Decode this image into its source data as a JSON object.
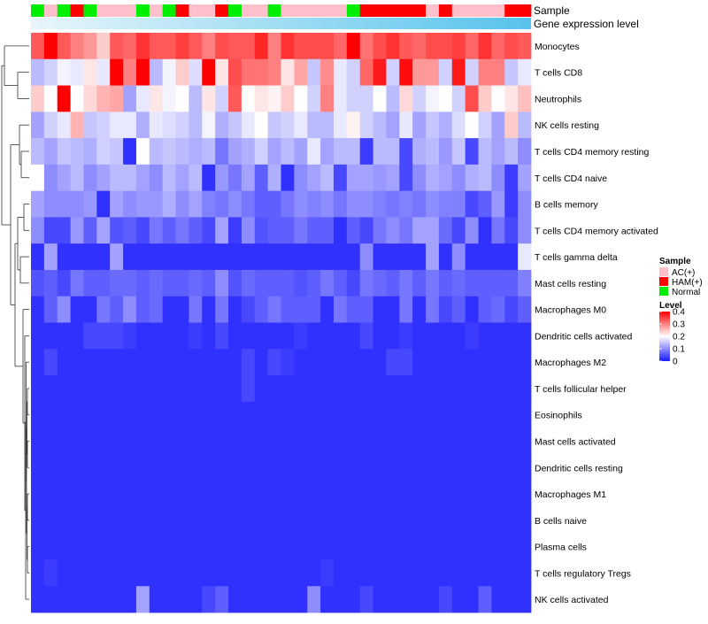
{
  "chart_data": {
    "type": "heatmap",
    "title": "",
    "annotation_titles": [
      "Sample",
      "Gene expression level"
    ],
    "rows": [
      "Monocytes",
      "T cells CD8",
      "Neutrophils",
      "NK cells resting",
      "T cells CD4 memory resting",
      "T cells CD4 naive",
      "B cells memory",
      "T cells CD4 memory activated",
      "T cells gamma delta",
      "Mast cells resting",
      "Macrophages M0",
      "Dendritic cells activated",
      "Macrophages M2",
      "T cells follicular helper",
      "Eosinophils",
      "Mast cells activated",
      "Dendritic cells resting",
      "Macrophages M1",
      "B cells naive",
      "Plasma cells",
      "T cells regulatory  Tregs",
      "NK cells activated"
    ],
    "sample_groups": [
      "N",
      "A",
      "N",
      "H",
      "N",
      "A",
      "A",
      "A",
      "N",
      "A",
      "N",
      "H",
      "A",
      "A",
      "H",
      "N",
      "A",
      "A",
      "N",
      "A",
      "A",
      "A",
      "A",
      "A",
      "N",
      "H",
      "H",
      "H",
      "H",
      "H",
      "A",
      "H",
      "A",
      "A",
      "A",
      "A",
      "H",
      "H"
    ],
    "sample_group_names": {
      "A": "AC(+)",
      "H": "HAM(+)",
      "N": "Normal"
    },
    "gene_expression_level_start": 0.3,
    "gene_expression_level_end": 1.0,
    "values": [
      [
        0.33,
        0.4,
        0.33,
        0.3,
        0.28,
        0.24,
        0.33,
        0.32,
        0.36,
        0.33,
        0.33,
        0.35,
        0.33,
        0.3,
        0.34,
        0.33,
        0.33,
        0.37,
        0.3,
        0.36,
        0.34,
        0.34,
        0.34,
        0.32,
        0.4,
        0.31,
        0.34,
        0.36,
        0.33,
        0.32,
        0.34,
        0.34,
        0.35,
        0.32,
        0.36,
        0.32,
        0.34,
        0.33
      ],
      [
        0.14,
        0.16,
        0.19,
        0.18,
        0.22,
        0.18,
        0.4,
        0.3,
        0.4,
        0.14,
        0.19,
        0.24,
        0.17,
        0.4,
        0.22,
        0.34,
        0.31,
        0.31,
        0.3,
        0.22,
        0.27,
        0.15,
        0.29,
        0.18,
        0.16,
        0.32,
        0.38,
        0.16,
        0.39,
        0.28,
        0.28,
        0.16,
        0.38,
        0.16,
        0.3,
        0.3,
        0.15,
        0.18
      ],
      [
        0.24,
        0.2,
        0.4,
        0.2,
        0.23,
        0.26,
        0.27,
        0.12,
        0.18,
        0.22,
        0.19,
        0.2,
        0.14,
        0.22,
        0.16,
        0.33,
        0.2,
        0.22,
        0.21,
        0.24,
        0.2,
        0.16,
        0.3,
        0.18,
        0.16,
        0.16,
        0.2,
        0.14,
        0.23,
        0.16,
        0.19,
        0.2,
        0.16,
        0.34,
        0.24,
        0.2,
        0.22,
        0.25
      ],
      [
        0.12,
        0.16,
        0.18,
        0.26,
        0.15,
        0.16,
        0.18,
        0.18,
        0.13,
        0.18,
        0.17,
        0.16,
        0.14,
        0.19,
        0.13,
        0.15,
        0.18,
        0.2,
        0.15,
        0.16,
        0.18,
        0.14,
        0.14,
        0.18,
        0.21,
        0.16,
        0.14,
        0.12,
        0.18,
        0.12,
        0.15,
        0.13,
        0.17,
        0.2,
        0.16,
        0.12,
        0.24,
        0.14
      ],
      [
        0.14,
        0.12,
        0.15,
        0.14,
        0.13,
        0.16,
        0.15,
        0.02,
        0.2,
        0.14,
        0.15,
        0.14,
        0.13,
        0.14,
        0.08,
        0.12,
        0.13,
        0.16,
        0.12,
        0.14,
        0.12,
        0.18,
        0.12,
        0.14,
        0.14,
        0.03,
        0.14,
        0.14,
        0.04,
        0.13,
        0.14,
        0.11,
        0.15,
        0.04,
        0.14,
        0.12,
        0.14,
        0.1
      ],
      [
        0.2,
        0.1,
        0.12,
        0.14,
        0.1,
        0.12,
        0.14,
        0.14,
        0.12,
        0.1,
        0.14,
        0.12,
        0.14,
        0.02,
        0.11,
        0.08,
        0.12,
        0.06,
        0.13,
        0.02,
        0.1,
        0.12,
        0.14,
        0.04,
        0.12,
        0.12,
        0.11,
        0.12,
        0.04,
        0.1,
        0.13,
        0.12,
        0.1,
        0.13,
        0.14,
        0.1,
        0.03,
        0.12
      ],
      [
        0.12,
        0.1,
        0.1,
        0.1,
        0.11,
        0.02,
        0.12,
        0.1,
        0.11,
        0.11,
        0.13,
        0.1,
        0.12,
        0.09,
        0.08,
        0.1,
        0.08,
        0.06,
        0.06,
        0.08,
        0.1,
        0.09,
        0.1,
        0.08,
        0.1,
        0.1,
        0.09,
        0.08,
        0.09,
        0.08,
        0.1,
        0.09,
        0.09,
        0.04,
        0.06,
        0.11,
        0.03,
        0.1
      ],
      [
        0.1,
        0.04,
        0.04,
        0.11,
        0.06,
        0.12,
        0.05,
        0.06,
        0.04,
        0.08,
        0.06,
        0.08,
        0.06,
        0.04,
        0.12,
        0.03,
        0.1,
        0.05,
        0.06,
        0.06,
        0.08,
        0.06,
        0.06,
        0.02,
        0.06,
        0.04,
        0.08,
        0.1,
        0.08,
        0.12,
        0.12,
        0.07,
        0.04,
        0.1,
        0.02,
        0.08,
        0.04,
        0.1
      ],
      [
        0.02,
        0.12,
        0.02,
        0.02,
        0.02,
        0.02,
        0.12,
        0.02,
        0.02,
        0.02,
        0.02,
        0.02,
        0.02,
        0.02,
        0.02,
        0.02,
        0.02,
        0.02,
        0.02,
        0.02,
        0.02,
        0.02,
        0.02,
        0.02,
        0.02,
        0.1,
        0.02,
        0.02,
        0.02,
        0.02,
        0.12,
        0.02,
        0.1,
        0.02,
        0.02,
        0.02,
        0.02,
        0.18
      ],
      [
        0.05,
        0.06,
        0.04,
        0.08,
        0.06,
        0.06,
        0.07,
        0.07,
        0.06,
        0.07,
        0.06,
        0.06,
        0.07,
        0.06,
        0.1,
        0.05,
        0.07,
        0.06,
        0.06,
        0.06,
        0.05,
        0.06,
        0.08,
        0.06,
        0.04,
        0.08,
        0.07,
        0.06,
        0.08,
        0.06,
        0.08,
        0.06,
        0.07,
        0.06,
        0.06,
        0.06,
        0.06,
        0.09
      ],
      [
        0.02,
        0.06,
        0.1,
        0.02,
        0.02,
        0.08,
        0.06,
        0.1,
        0.06,
        0.07,
        0.02,
        0.02,
        0.08,
        0.02,
        0.08,
        0.02,
        0.04,
        0.06,
        0.08,
        0.06,
        0.06,
        0.06,
        0.02,
        0.08,
        0.06,
        0.06,
        0.02,
        0.02,
        0.08,
        0.02,
        0.08,
        0.04,
        0.06,
        0.02,
        0.06,
        0.07,
        0.04,
        0.06
      ],
      [
        0.02,
        0.02,
        0.02,
        0.02,
        0.04,
        0.04,
        0.04,
        0.03,
        0.02,
        0.02,
        0.02,
        0.02,
        0.03,
        0.02,
        0.04,
        0.02,
        0.02,
        0.02,
        0.02,
        0.02,
        0.03,
        0.02,
        0.02,
        0.02,
        0.02,
        0.04,
        0.02,
        0.02,
        0.03,
        0.02,
        0.02,
        0.02,
        0.02,
        0.03,
        0.02,
        0.02,
        0.02,
        0.02
      ],
      [
        0.02,
        0.04,
        0.02,
        0.02,
        0.02,
        0.02,
        0.02,
        0.02,
        0.02,
        0.02,
        0.02,
        0.02,
        0.02,
        0.02,
        0.02,
        0.02,
        0.04,
        0.02,
        0.04,
        0.03,
        0.02,
        0.02,
        0.02,
        0.02,
        0.02,
        0.02,
        0.02,
        0.04,
        0.04,
        0.02,
        0.02,
        0.02,
        0.02,
        0.02,
        0.02,
        0.02,
        0.02,
        0.02
      ],
      [
        0.02,
        0.02,
        0.02,
        0.02,
        0.02,
        0.02,
        0.02,
        0.02,
        0.02,
        0.02,
        0.02,
        0.02,
        0.02,
        0.02,
        0.02,
        0.02,
        0.04,
        0.02,
        0.02,
        0.02,
        0.02,
        0.02,
        0.02,
        0.02,
        0.02,
        0.02,
        0.02,
        0.02,
        0.02,
        0.02,
        0.02,
        0.02,
        0.02,
        0.02,
        0.02,
        0.02,
        0.02,
        0.02
      ],
      [
        0.02,
        0.02,
        0.02,
        0.02,
        0.02,
        0.02,
        0.02,
        0.02,
        0.02,
        0.02,
        0.02,
        0.02,
        0.02,
        0.02,
        0.02,
        0.02,
        0.02,
        0.02,
        0.02,
        0.02,
        0.02,
        0.02,
        0.02,
        0.02,
        0.02,
        0.02,
        0.02,
        0.02,
        0.02,
        0.02,
        0.02,
        0.02,
        0.02,
        0.02,
        0.02,
        0.02,
        0.02,
        0.02
      ],
      [
        0.02,
        0.02,
        0.02,
        0.02,
        0.02,
        0.02,
        0.02,
        0.02,
        0.02,
        0.02,
        0.02,
        0.02,
        0.02,
        0.02,
        0.02,
        0.02,
        0.02,
        0.02,
        0.02,
        0.02,
        0.02,
        0.02,
        0.02,
        0.02,
        0.02,
        0.02,
        0.02,
        0.02,
        0.02,
        0.02,
        0.02,
        0.02,
        0.02,
        0.02,
        0.02,
        0.02,
        0.02,
        0.02
      ],
      [
        0.02,
        0.02,
        0.02,
        0.02,
        0.02,
        0.02,
        0.02,
        0.02,
        0.02,
        0.02,
        0.02,
        0.02,
        0.02,
        0.02,
        0.02,
        0.02,
        0.02,
        0.02,
        0.02,
        0.02,
        0.02,
        0.02,
        0.02,
        0.02,
        0.02,
        0.02,
        0.02,
        0.02,
        0.02,
        0.02,
        0.02,
        0.02,
        0.02,
        0.02,
        0.02,
        0.02,
        0.02,
        0.02
      ],
      [
        0.02,
        0.02,
        0.02,
        0.02,
        0.02,
        0.02,
        0.02,
        0.02,
        0.02,
        0.02,
        0.02,
        0.02,
        0.02,
        0.02,
        0.02,
        0.02,
        0.02,
        0.02,
        0.02,
        0.02,
        0.02,
        0.02,
        0.02,
        0.02,
        0.02,
        0.02,
        0.02,
        0.02,
        0.02,
        0.02,
        0.02,
        0.02,
        0.02,
        0.02,
        0.02,
        0.02,
        0.02,
        0.02
      ],
      [
        0.02,
        0.02,
        0.02,
        0.02,
        0.02,
        0.02,
        0.02,
        0.02,
        0.02,
        0.02,
        0.02,
        0.02,
        0.02,
        0.02,
        0.02,
        0.02,
        0.02,
        0.02,
        0.02,
        0.02,
        0.02,
        0.02,
        0.02,
        0.02,
        0.02,
        0.02,
        0.02,
        0.02,
        0.02,
        0.02,
        0.02,
        0.02,
        0.02,
        0.02,
        0.02,
        0.02,
        0.02,
        0.02
      ],
      [
        0.02,
        0.02,
        0.02,
        0.02,
        0.02,
        0.02,
        0.02,
        0.02,
        0.02,
        0.02,
        0.02,
        0.02,
        0.02,
        0.02,
        0.02,
        0.02,
        0.02,
        0.02,
        0.02,
        0.02,
        0.02,
        0.02,
        0.02,
        0.02,
        0.02,
        0.02,
        0.02,
        0.02,
        0.02,
        0.02,
        0.02,
        0.02,
        0.02,
        0.02,
        0.02,
        0.02,
        0.02,
        0.02
      ],
      [
        0.02,
        0.03,
        0.02,
        0.02,
        0.02,
        0.02,
        0.02,
        0.02,
        0.02,
        0.02,
        0.02,
        0.02,
        0.02,
        0.02,
        0.02,
        0.02,
        0.02,
        0.02,
        0.02,
        0.02,
        0.02,
        0.02,
        0.03,
        0.02,
        0.02,
        0.02,
        0.02,
        0.02,
        0.02,
        0.02,
        0.02,
        0.02,
        0.02,
        0.02,
        0.02,
        0.02,
        0.02,
        0.02
      ],
      [
        0.02,
        0.02,
        0.02,
        0.02,
        0.02,
        0.02,
        0.02,
        0.02,
        0.12,
        0.02,
        0.02,
        0.02,
        0.02,
        0.04,
        0.06,
        0.02,
        0.02,
        0.02,
        0.02,
        0.02,
        0.02,
        0.1,
        0.02,
        0.02,
        0.02,
        0.04,
        0.02,
        0.02,
        0.02,
        0.02,
        0.02,
        0.04,
        0.02,
        0.02,
        0.06,
        0.02,
        0.02,
        0.02
      ]
    ],
    "dendrogram_merge_order": [
      [
        1,
        2
      ],
      [
        0,
        "1-2"
      ],
      [
        4,
        5
      ],
      [
        3,
        "4-5"
      ],
      [
        6,
        7
      ],
      [
        8,
        9
      ],
      [
        "6-7",
        "8-9"
      ],
      [
        "3-5",
        "6-9"
      ],
      [
        10,
        "11-21"
      ],
      [
        "6-9",
        "10-21"
      ],
      [
        "0-2",
        "3-21"
      ]
    ],
    "legend": {
      "sample_title": "Sample",
      "sample_entries": [
        "AC(+)",
        "HAM(+)",
        "Normal"
      ],
      "level_title": "Level",
      "level_ticks": [
        0,
        0.1,
        0.2,
        0.3,
        0.4
      ],
      "level_tick_labels": [
        "0",
        "0.1",
        "0.2",
        "0.3",
        "0.4"
      ]
    },
    "colors": {
      "low": "#1a1aff",
      "mid": "#ffffff",
      "high": "#ff0000",
      "AC(+)": "#ffc0cb",
      "HAM(+)": "#ff0000",
      "Normal": "#00ee00",
      "gene_expr_start": "#e9f6fb",
      "gene_expr_end": "#56c3ec"
    }
  }
}
